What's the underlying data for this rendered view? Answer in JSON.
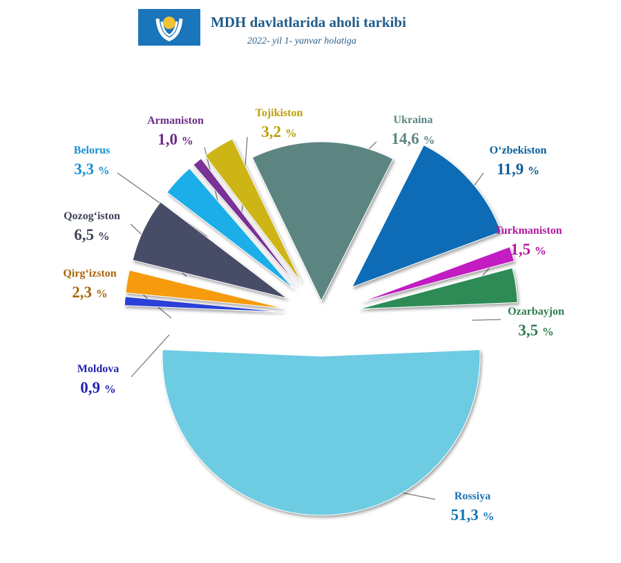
{
  "header": {
    "title": "MDH davlatlarida aholi tarkibi",
    "subtitle": "2022- yil 1- yanvar holatiga"
  },
  "chart_data": {
    "type": "pie",
    "title": "MDH davlatlarida aholi tarkibi",
    "subtitle": "2022- yil 1- yanvar holatiga",
    "unit": "%",
    "slices": [
      {
        "label": "Ukraina",
        "value": 14.6,
        "display": "14,6",
        "color": "#5b8582",
        "labelColor": "#5b8582"
      },
      {
        "label": "O‘zbekiston",
        "value": 11.9,
        "display": "11,9",
        "color": "#0a6cb5",
        "labelColor": "#0d5f97"
      },
      {
        "label": "Turkmaniston",
        "value": 1.5,
        "display": "1,5",
        "color": "#c21fc2",
        "labelColor": "#b0189e"
      },
      {
        "label": "Ozarbayjon",
        "value": 3.5,
        "display": "3,5",
        "color": "#2e8b57",
        "labelColor": "#2e7d52"
      },
      {
        "label": "Rossiya",
        "value": 51.3,
        "display": "51,3",
        "color": "#6dcbe2",
        "labelColor": "#1a74b3"
      },
      {
        "label": "Moldova",
        "value": 0.9,
        "display": "0,9",
        "color": "#2b3fd6",
        "labelColor": "#2323b5"
      },
      {
        "label": "Qirg‘izston",
        "value": 2.3,
        "display": "2,3",
        "color": "#f59b0f",
        "labelColor": "#a8660a"
      },
      {
        "label": "Qozog‘iston",
        "value": 6.5,
        "display": "6,5",
        "color": "#474e66",
        "labelColor": "#3e4457"
      },
      {
        "label": "Belorus",
        "value": 3.3,
        "display": "3,3",
        "color": "#1eaee8",
        "labelColor": "#1a8fcf"
      },
      {
        "label": "Armaniston",
        "value": 1.0,
        "display": "1,0",
        "color": "#7a3296",
        "labelColor": "#6a2c85"
      },
      {
        "label": "Tojikiston",
        "value": 3.2,
        "display": "3,2",
        "color": "#cdb512",
        "labelColor": "#b89f0a"
      }
    ]
  }
}
